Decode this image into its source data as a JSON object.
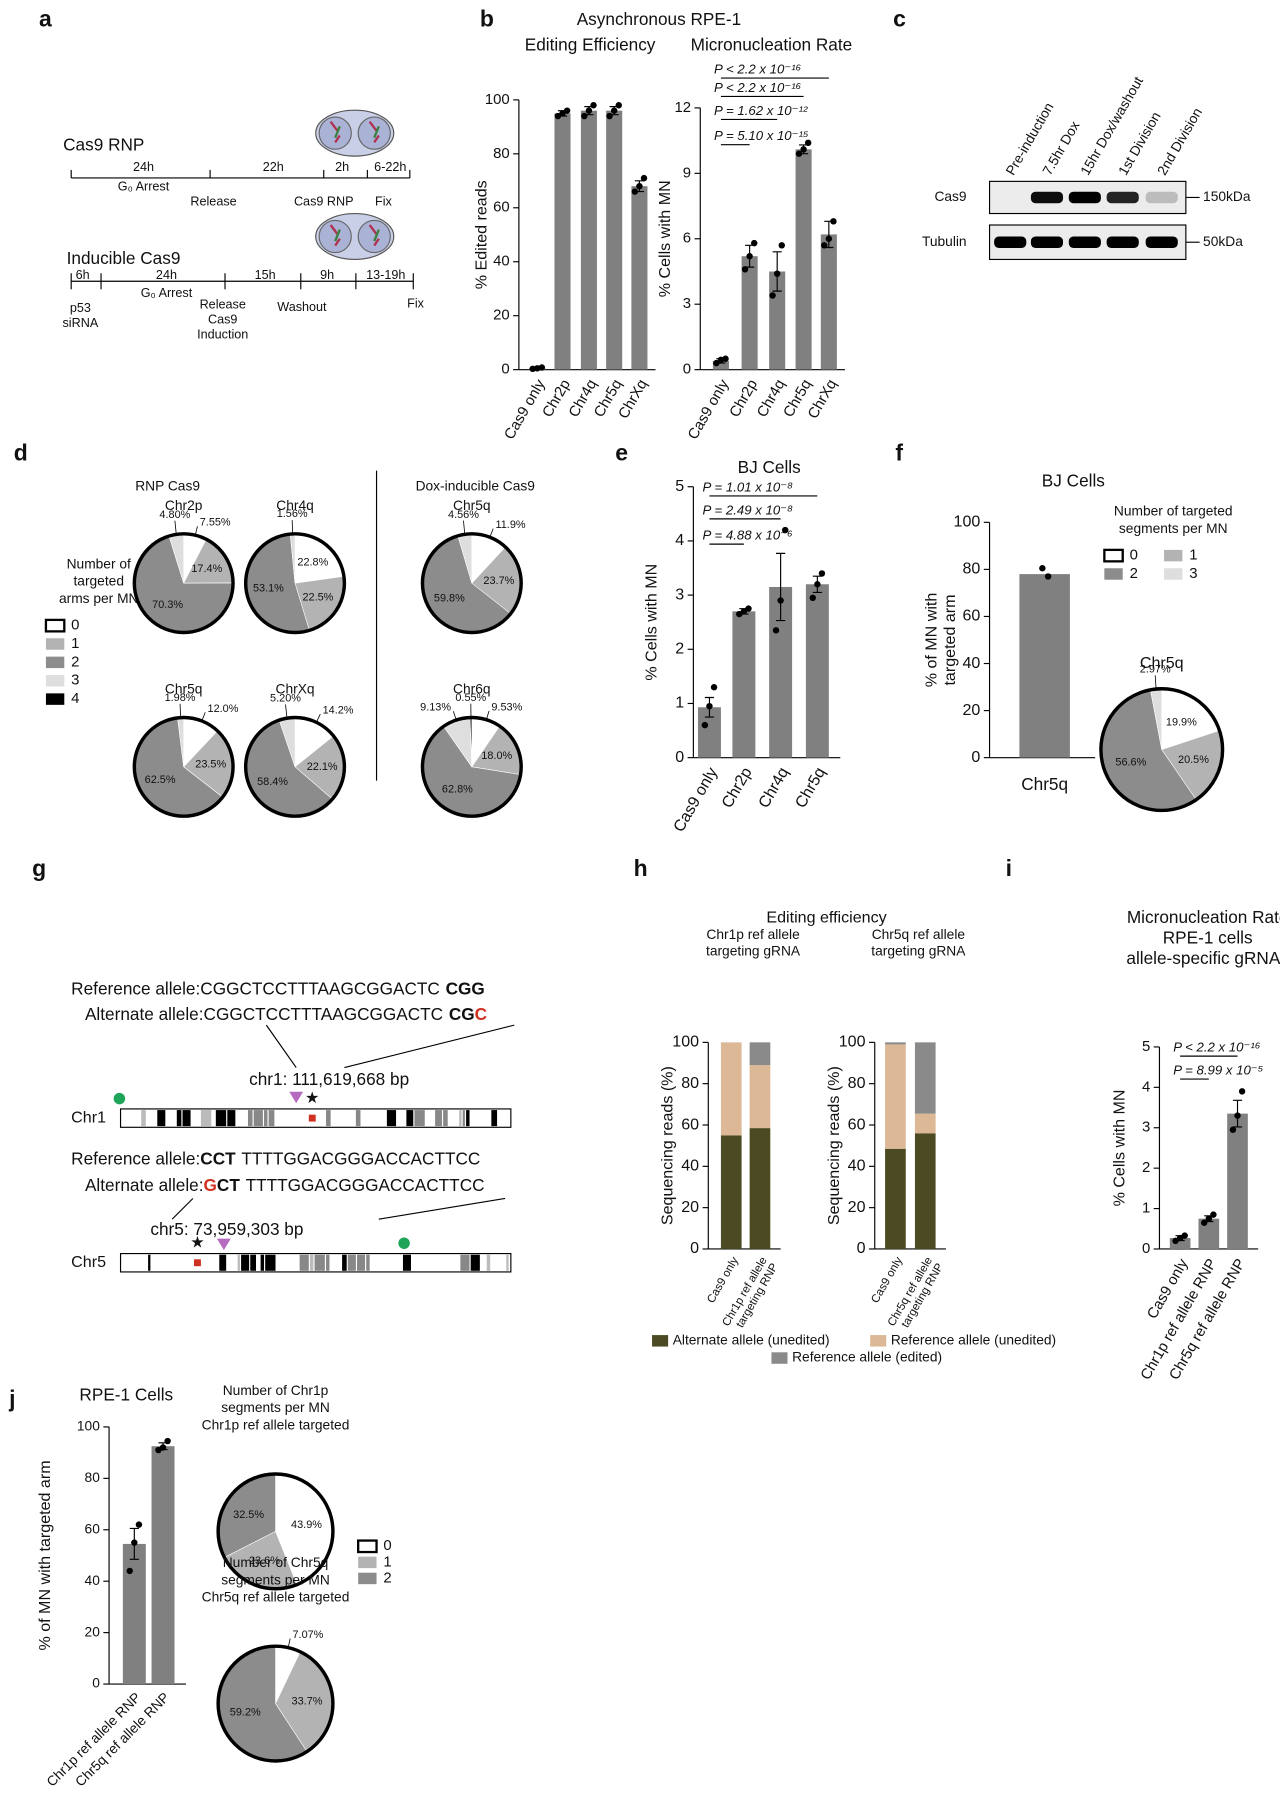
{
  "panel_labels": [
    "a",
    "b",
    "c",
    "d",
    "e",
    "f",
    "g",
    "h",
    "i",
    "j"
  ],
  "a": {
    "rnp": {
      "title": "Cas9 RNP",
      "durations": [
        "24h",
        "22h",
        "2h",
        "6-22h"
      ],
      "events": [
        "G₀ Arrest",
        "Release",
        "Cas9 RNP",
        "Fix"
      ]
    },
    "inducible": {
      "title": "Inducible Cas9",
      "durations": [
        "6h",
        "24h",
        "15h",
        "9h",
        "13-19h"
      ],
      "events": [
        [
          "p53",
          "siRNA"
        ],
        [
          "G₀ Arrest"
        ],
        [
          "Release",
          "Cas9",
          "Induction"
        ],
        [
          "Washout"
        ],
        [
          "Fix"
        ]
      ]
    }
  },
  "b": {
    "header": "Asynchronous RPE-1"
  },
  "c": {
    "lanes": [
      "Pre-induction",
      "7.5hr Dox",
      "15hr Dox/washout",
      "1st Division",
      "2nd Division"
    ],
    "rows": [
      "Cas9",
      "Tubulin"
    ],
    "markers": [
      "150kDa",
      "50kDa"
    ]
  },
  "d": {
    "groups": [
      "RNP Cas9",
      "Dox-inducible Cas9"
    ],
    "legend": {
      "title": [
        "Number of",
        "targeted",
        "arms per MN"
      ],
      "categories": [
        "0",
        "1",
        "2",
        "3",
        "4"
      ],
      "colors": [
        "#ffffff",
        "#b3b3b3",
        "#8c8c8c",
        "#dedede",
        "#000000"
      ]
    }
  },
  "f": {
    "legend": {
      "title": [
        "Number of targeted",
        "segments per MN"
      ],
      "categories": [
        "0",
        "1",
        "2",
        "3"
      ],
      "colors": [
        "#ffffff",
        "#b3b3b3",
        "#8c8c8c",
        "#dedede"
      ]
    }
  },
  "g": {
    "chr1": {
      "ref": {
        "label": "Reference allele:",
        "seq": "CGGCTCCTTTAAGCGGACTC",
        "pam": "CGG"
      },
      "alt": {
        "label": "Alternate allele:",
        "seq": "CGGCTCCTTTAAGCGGACTC",
        "pam": "CG",
        "snp": "C"
      },
      "position": "chr1: 111,619,668 bp",
      "name": "Chr1"
    },
    "chr5": {
      "ref": {
        "label": "Reference allele:",
        "pam": "CCT",
        "seq": "TTTTGGACGGGACCACTTCC"
      },
      "alt": {
        "label": "Alternate allele:",
        "snp": "G",
        "pam": "CT",
        "seq": "TTTTGGACGGGACCACTTCC"
      },
      "position": "chr5: 73,959,303 bp",
      "name": "Chr5"
    }
  },
  "j": {
    "legend": {
      "categories": [
        "0",
        "1",
        "2"
      ],
      "colors": [
        "#ffffff",
        "#b3b3b3",
        "#8c8c8c"
      ]
    }
  },
  "chart_data": [
    {
      "type": "bar",
      "title": "Editing Efficiency",
      "ylabel": "% Edited reads",
      "categories": [
        "Cas9 only",
        "Chr2p",
        "Chr4q",
        "Chr5q",
        "ChrXq"
      ],
      "values": [
        0.5,
        95,
        96,
        96,
        68
      ],
      "errors": [
        0.2,
        1,
        1.5,
        1.5,
        2
      ],
      "points": [
        [
          0.3,
          0.5,
          0.8
        ],
        [
          94,
          95,
          96
        ],
        [
          94,
          96,
          98
        ],
        [
          94,
          96,
          98
        ],
        [
          66,
          68,
          71
        ]
      ],
      "ylim": [
        0,
        100
      ],
      "yticks": [
        0,
        20,
        40,
        60,
        80,
        100
      ],
      "color": "#808080"
    },
    {
      "type": "bar",
      "title": "Micronucleation Rate",
      "ylabel": "% Cells with MN",
      "categories": [
        "Cas9 only",
        "Chr2p",
        "Chr4q",
        "Chr5q",
        "ChrXq"
      ],
      "values": [
        0.4,
        5.2,
        4.5,
        10.1,
        6.2
      ],
      "errors": [
        0.1,
        0.5,
        0.9,
        0.2,
        0.6
      ],
      "points": [
        [
          0.3,
          0.45,
          0.5
        ],
        [
          4.6,
          5.2,
          5.8
        ],
        [
          3.4,
          4.4,
          5.7
        ],
        [
          9.9,
          10.1,
          10.4
        ],
        [
          5.7,
          6.0,
          6.8
        ]
      ],
      "ylim": [
        0,
        12
      ],
      "yticks": [
        0,
        3,
        6,
        9,
        12
      ],
      "color": "#808080",
      "comparisons": [
        "P = 5.10 x 10⁻¹⁵",
        "P = 1.62 x 10⁻¹²",
        "P < 2.2 x 10⁻¹⁶",
        "P < 2.2 x 10⁻¹⁶"
      ]
    },
    {
      "type": "pie",
      "title": "Chr2p",
      "values": [
        7.55,
        17.4,
        70.3,
        4.8
      ],
      "value_labels": [
        "7.55%",
        "17.4%",
        "70.3%",
        "4.80%"
      ],
      "colors": [
        "#ffffff",
        "#b3b3b3",
        "#8c8c8c",
        "#dedede"
      ]
    },
    {
      "type": "pie",
      "title": "Chr4q",
      "values": [
        22.8,
        22.5,
        53.1,
        1.56
      ],
      "value_labels": [
        "22.8%",
        "22.5%",
        "53.1%",
        "1.56%"
      ],
      "colors": [
        "#ffffff",
        "#b3b3b3",
        "#8c8c8c",
        "#dedede"
      ]
    },
    {
      "type": "pie",
      "title": "Chr5q",
      "values": [
        12.0,
        23.5,
        62.5,
        1.98
      ],
      "value_labels": [
        "12.0%",
        "23.5%",
        "62.5%",
        "1.98%"
      ],
      "colors": [
        "#ffffff",
        "#b3b3b3",
        "#8c8c8c",
        "#dedede"
      ]
    },
    {
      "type": "pie",
      "title": "ChrXq",
      "values": [
        14.2,
        22.1,
        58.4,
        5.2
      ],
      "value_labels": [
        "14.2%",
        "22.1%",
        "58.4%",
        "5.20%"
      ],
      "colors": [
        "#ffffff",
        "#b3b3b3",
        "#8c8c8c",
        "#dedede"
      ]
    },
    {
      "type": "pie",
      "title": "Chr5q",
      "values": [
        11.9,
        23.7,
        59.8,
        4.56
      ],
      "value_labels": [
        "11.9%",
        "23.7%",
        "59.8%",
        "4.56%"
      ],
      "colors": [
        "#ffffff",
        "#b3b3b3",
        "#8c8c8c",
        "#dedede"
      ]
    },
    {
      "type": "pie",
      "title": "Chr6q",
      "values": [
        9.53,
        18.0,
        62.8,
        9.13,
        0.55
      ],
      "value_labels": [
        "9.53%",
        "18.0%",
        "62.8%",
        "9.13%",
        "0.55%"
      ],
      "colors": [
        "#ffffff",
        "#b3b3b3",
        "#8c8c8c",
        "#dedede",
        "#000000"
      ]
    },
    {
      "type": "bar",
      "title": "BJ Cells",
      "ylabel": "% Cells with MN",
      "categories": [
        "Cas9 only",
        "Chr2p",
        "Chr4q",
        "Chr5q"
      ],
      "values": [
        0.93,
        2.7,
        3.15,
        3.2
      ],
      "errors": [
        0.18,
        0.05,
        0.62,
        0.15
      ],
      "points": [
        [
          0.6,
          0.95,
          1.3
        ],
        [
          2.65,
          2.7,
          2.75
        ],
        [
          2.35,
          2.9,
          4.2
        ],
        [
          2.95,
          3.2,
          3.4
        ]
      ],
      "ylim": [
        0,
        5
      ],
      "yticks": [
        0,
        1,
        2,
        3,
        4,
        5
      ],
      "color": "#808080",
      "comparisons": [
        "P = 4.88 x 10⁻⁶",
        "P = 2.49 x 10⁻⁸",
        "P = 1.01 x 10⁻⁸"
      ]
    },
    {
      "type": "bar",
      "title": "BJ Cells",
      "ylabel": [
        "% of MN with",
        "targeted arm"
      ],
      "categories": [
        "Chr5q"
      ],
      "values": [
        78
      ],
      "points": [
        [
          80.5,
          77
        ]
      ],
      "ylim": [
        0,
        100
      ],
      "yticks": [
        0,
        20,
        40,
        60,
        80,
        100
      ],
      "color": "#808080"
    },
    {
      "type": "pie",
      "title": "Chr5q",
      "values": [
        19.9,
        20.5,
        56.6,
        2.97
      ],
      "value_labels": [
        "19.9%",
        "20.5%",
        "56.6%",
        "2.97%"
      ],
      "colors": [
        "#ffffff",
        "#b3b3b3",
        "#8c8c8c",
        "#dedede"
      ]
    },
    {
      "type": "stacked_bar",
      "title": "Editing efficiency",
      "subtitles": [
        [
          "Chr1p ref allele",
          "targeting gRNA"
        ],
        [
          "Chr5q ref allele",
          "targeting gRNA"
        ]
      ],
      "ylabel": "Sequencing reads (%)",
      "categories": [
        [
          "Cas9 only"
        ],
        [
          "Chr1p ref allele",
          "targeting RNP"
        ],
        [
          "Cas9 only"
        ],
        [
          "Chr5q ref allele",
          "targeting RNP"
        ]
      ],
      "series": [
        {
          "name": "Alternate allele (unedited)",
          "color": "#4b4a22",
          "values": [
            55,
            58.5,
            48.5,
            56
          ]
        },
        {
          "name": "Reference allele (unedited)",
          "color": "#dcb896",
          "values": [
            45,
            30.5,
            50.5,
            9.5
          ]
        },
        {
          "name": "Reference allele (edited)",
          "color": "#8a8a8a",
          "values": [
            0,
            11,
            1,
            34.5
          ]
        }
      ],
      "ylim": [
        0,
        100
      ],
      "yticks": [
        0,
        20,
        40,
        60,
        80,
        100
      ]
    },
    {
      "type": "bar",
      "title": [
        "Micronucleation Rate",
        "RPE-1 cells",
        "allele-specific gRNAs"
      ],
      "ylabel": "% Cells with MN",
      "categories": [
        "Cas9 only",
        "Chr1p ref allele RNP",
        "Chr5q ref allele RNP"
      ],
      "values": [
        0.27,
        0.75,
        3.35
      ],
      "errors": [
        0.06,
        0.07,
        0.33
      ],
      "points": [
        [
          0.2,
          0.27,
          0.33
        ],
        [
          0.65,
          0.75,
          0.85
        ],
        [
          2.95,
          3.3,
          3.9
        ]
      ],
      "ylim": [
        0,
        5
      ],
      "yticks": [
        0,
        1,
        2,
        3,
        4,
        5
      ],
      "color": "#808080",
      "comparisons": [
        "P = 8.99 x 10⁻⁵",
        "P < 2.2 x 10⁻¹⁶"
      ]
    },
    {
      "type": "bar",
      "title": "RPE-1 Cells",
      "ylabel": "% of MN with targeted arm",
      "categories": [
        "Chr1p ref allele RNP",
        "Chr5q ref allele RNP"
      ],
      "values": [
        54.5,
        92.5
      ],
      "errors": [
        6,
        1.3
      ],
      "points": [
        [
          44,
          55,
          62
        ],
        [
          91,
          92,
          94.5
        ]
      ],
      "ylim": [
        0,
        100
      ],
      "yticks": [
        0,
        20,
        40,
        60,
        80,
        100
      ],
      "color": "#808080"
    },
    {
      "type": "pie",
      "title": [
        "Number of Chr1p",
        "segments per MN",
        "Chr1p ref allele targeted"
      ],
      "values": [
        43.9,
        23.6,
        32.5
      ],
      "value_labels": [
        "43.9%",
        "23.6%",
        "32.5%"
      ],
      "colors": [
        "#ffffff",
        "#b3b3b3",
        "#8c8c8c"
      ]
    },
    {
      "type": "pie",
      "title": [
        "Number of Chr5q",
        "segments per MN",
        "Chr5q ref allele targeted"
      ],
      "values": [
        7.07,
        33.7,
        59.2
      ],
      "value_labels": [
        "7.07%",
        "33.7%",
        "59.2%"
      ],
      "colors": [
        "#ffffff",
        "#b3b3b3",
        "#8c8c8c"
      ]
    }
  ]
}
